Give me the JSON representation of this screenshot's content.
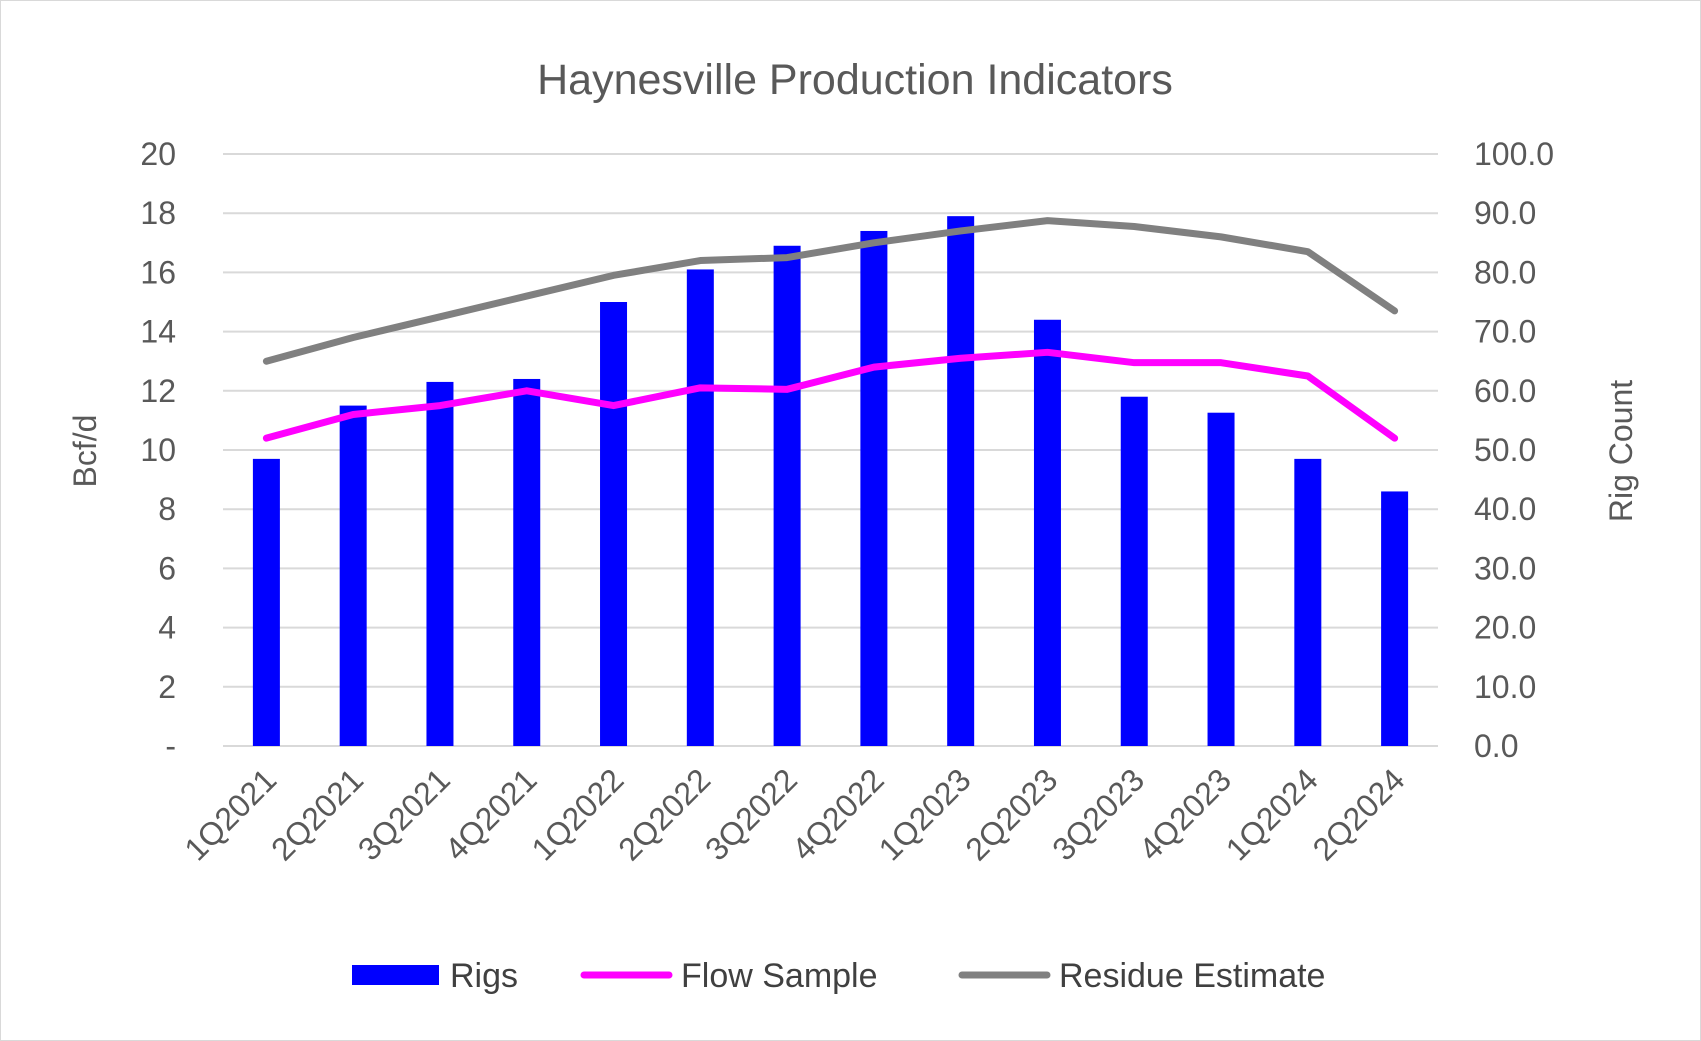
{
  "chart_data": {
    "type": "bar",
    "title": "Haynesville Production Indicators",
    "categories": [
      "1Q2021",
      "2Q2021",
      "3Q2021",
      "4Q2021",
      "1Q2022",
      "2Q2022",
      "3Q2022",
      "4Q2022",
      "1Q2023",
      "2Q2023",
      "3Q2023",
      "4Q2023",
      "1Q2024",
      "2Q2024"
    ],
    "series": [
      {
        "name": "Rigs",
        "kind": "bar",
        "axis": "right",
        "color": "#0000ff",
        "values": [
          48.5,
          57.5,
          61.5,
          62.0,
          75.0,
          80.5,
          84.5,
          87.0,
          89.5,
          72.0,
          59.0,
          56.3,
          48.5,
          43.0
        ]
      },
      {
        "name": "Flow Sample",
        "kind": "line",
        "axis": "left",
        "color": "#ff00ff",
        "values": [
          10.4,
          11.2,
          11.5,
          12.0,
          11.5,
          12.1,
          12.05,
          12.8,
          13.1,
          13.3,
          12.95,
          12.95,
          12.5,
          10.4
        ]
      },
      {
        "name": "Residue Estimate",
        "kind": "line",
        "axis": "left",
        "color": "#808080",
        "values": [
          13.0,
          13.8,
          14.5,
          15.2,
          15.9,
          16.4,
          16.5,
          17.0,
          17.4,
          17.75,
          17.55,
          17.2,
          16.7,
          14.7
        ]
      }
    ],
    "ylabel": "Bcf/d",
    "y2label": "Rig Count",
    "ylim": [
      0,
      20
    ],
    "y2lim": [
      0,
      100
    ],
    "yticks": [
      "-",
      "2",
      "4",
      "6",
      "8",
      "10",
      "12",
      "14",
      "16",
      "18",
      "20"
    ],
    "y2ticks": [
      "0.0",
      "10.0",
      "20.0",
      "30.0",
      "40.0",
      "50.0",
      "60.0",
      "70.0",
      "80.0",
      "90.0",
      "100.0"
    ],
    "grid": true,
    "legend_position": "bottom"
  }
}
